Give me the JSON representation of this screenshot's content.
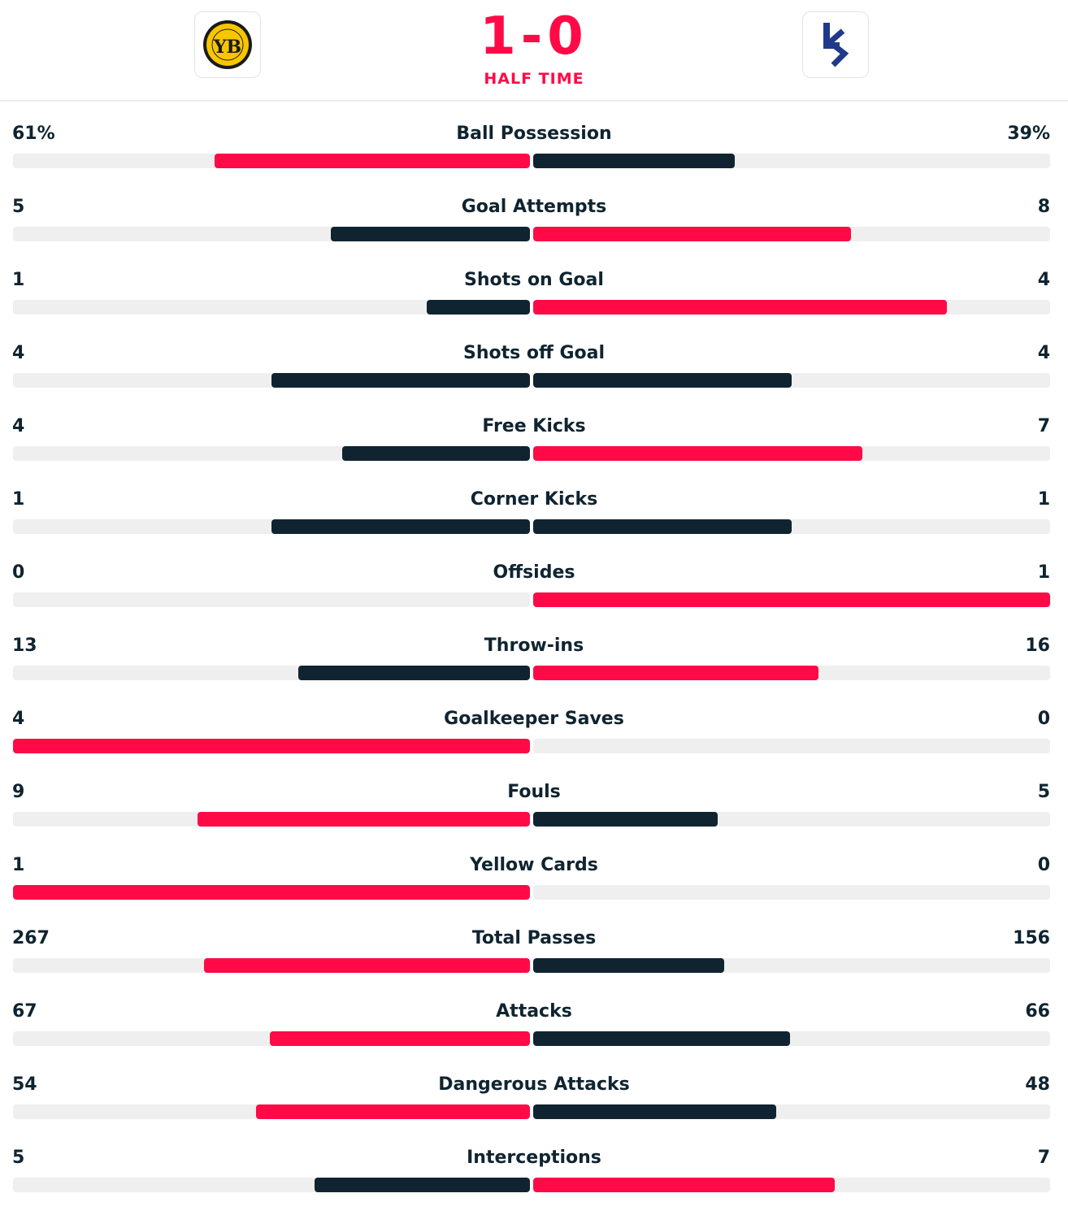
{
  "match": {
    "score": "1-0",
    "status": "HALF TIME",
    "home_team_logo": "young-boys-crest",
    "away_team_logo": "lausanne-sport-crest"
  },
  "colors": {
    "accent": "#ff0a47",
    "dark": "#0f2430",
    "track": "#efefef"
  },
  "stats": [
    {
      "name": "Ball Possession",
      "home": "61%",
      "away": "39%",
      "home_val": 61,
      "away_val": 39,
      "home_color": "#ff0a47",
      "away_color": "#0f2430"
    },
    {
      "name": "Goal Attempts",
      "home": "5",
      "away": "8",
      "home_val": 5,
      "away_val": 8,
      "home_color": "#0f2430",
      "away_color": "#ff0a47"
    },
    {
      "name": "Shots on Goal",
      "home": "1",
      "away": "4",
      "home_val": 1,
      "away_val": 4,
      "home_color": "#0f2430",
      "away_color": "#ff0a47"
    },
    {
      "name": "Shots off Goal",
      "home": "4",
      "away": "4",
      "home_val": 4,
      "away_val": 4,
      "home_color": "#0f2430",
      "away_color": "#0f2430"
    },
    {
      "name": "Free Kicks",
      "home": "4",
      "away": "7",
      "home_val": 4,
      "away_val": 7,
      "home_color": "#0f2430",
      "away_color": "#ff0a47"
    },
    {
      "name": "Corner Kicks",
      "home": "1",
      "away": "1",
      "home_val": 1,
      "away_val": 1,
      "home_color": "#0f2430",
      "away_color": "#0f2430"
    },
    {
      "name": "Offsides",
      "home": "0",
      "away": "1",
      "home_val": 0,
      "away_val": 1,
      "home_color": "#0f2430",
      "away_color": "#ff0a47"
    },
    {
      "name": "Throw-ins",
      "home": "13",
      "away": "16",
      "home_val": 13,
      "away_val": 16,
      "home_color": "#0f2430",
      "away_color": "#ff0a47"
    },
    {
      "name": "Goalkeeper Saves",
      "home": "4",
      "away": "0",
      "home_val": 4,
      "away_val": 0,
      "home_color": "#ff0a47",
      "away_color": "#0f2430"
    },
    {
      "name": "Fouls",
      "home": "9",
      "away": "5",
      "home_val": 9,
      "away_val": 5,
      "home_color": "#ff0a47",
      "away_color": "#0f2430"
    },
    {
      "name": "Yellow Cards",
      "home": "1",
      "away": "0",
      "home_val": 1,
      "away_val": 0,
      "home_color": "#ff0a47",
      "away_color": "#0f2430"
    },
    {
      "name": "Total Passes",
      "home": "267",
      "away": "156",
      "home_val": 267,
      "away_val": 156,
      "home_color": "#ff0a47",
      "away_color": "#0f2430"
    },
    {
      "name": "Attacks",
      "home": "67",
      "away": "66",
      "home_val": 67,
      "away_val": 66,
      "home_color": "#ff0a47",
      "away_color": "#0f2430"
    },
    {
      "name": "Dangerous Attacks",
      "home": "54",
      "away": "48",
      "home_val": 54,
      "away_val": 48,
      "home_color": "#ff0a47",
      "away_color": "#0f2430"
    },
    {
      "name": "Interceptions",
      "home": "5",
      "away": "7",
      "home_val": 5,
      "away_val": 7,
      "home_color": "#0f2430",
      "away_color": "#ff0a47"
    }
  ]
}
